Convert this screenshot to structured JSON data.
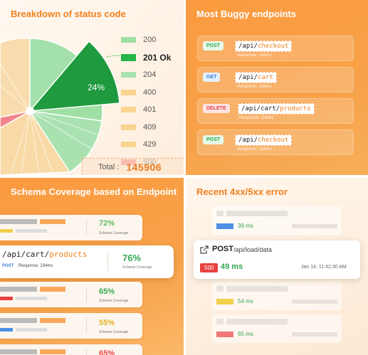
{
  "status_panel": {
    "title": "Breakdown of status code",
    "legend": [
      {
        "label": "200",
        "color": "#9fdfa4"
      },
      {
        "label": "201 Ok",
        "color": "#27b54a",
        "highlight": true
      },
      {
        "label": "204",
        "color": "#a9e2b0"
      },
      {
        "label": "400",
        "color": "#f9d490"
      },
      {
        "label": "401",
        "color": "#f9d490"
      },
      {
        "label": "409",
        "color": "#f9d490"
      },
      {
        "label": "429",
        "color": "#f9d490"
      },
      {
        "label": "500",
        "color": "#f2838a"
      }
    ],
    "highlight_label": "24%",
    "total_label": "Total :",
    "total_value": "145906"
  },
  "buggy_panel": {
    "title": "Most Buggy endpoints",
    "endpoints": [
      {
        "method": "POST",
        "path_prefix": "/api/",
        "path_seg": "checkout",
        "response": "Response: 234ms"
      },
      {
        "method": "GET",
        "path_prefix": "/api/",
        "path_seg": "cart",
        "response": "Response: 234ms"
      },
      {
        "method": "DELETE",
        "path_prefix": "/api/cart/",
        "path_seg": "products",
        "response": "Response: 234ms"
      },
      {
        "method": "POST",
        "path_prefix": "/api/",
        "path_seg": "checkout",
        "response": "Response: 234ms"
      }
    ]
  },
  "schema_panel": {
    "title": "Schema Coverage based on Endpoint",
    "rows": [
      {
        "percent": "72%",
        "sub": "Schema Coverage",
        "color": "#5cb85c"
      },
      {
        "path_prefix": "/api/cart/",
        "path_seg": "products",
        "method": "POST",
        "response": "Response: 234ms",
        "percent": "76%",
        "sub": "Schema Coverage",
        "color": "#34a853"
      },
      {
        "percent": "65%",
        "sub": "Schema Coverage",
        "color": "#34a853"
      },
      {
        "percent": "55%",
        "sub": "Schema Coverage",
        "color": "#e0b323"
      },
      {
        "percent": "65%",
        "sub": "",
        "color": "#e8413f"
      }
    ]
  },
  "errors_panel": {
    "title": "Recent 4xx/5xx error",
    "rows": [
      {
        "ms": "39 ms",
        "color": "#4d8fe6"
      },
      {
        "ms": "54 ms",
        "color": "#f2d04b"
      },
      {
        "ms": "65 ms",
        "color": "#f2787a"
      }
    ],
    "focused": {
      "method": "POST",
      "path": "/api/load/data",
      "code": "500",
      "ms": "49 ms",
      "date": "Jan 14, 11:42:30 AM"
    }
  }
}
